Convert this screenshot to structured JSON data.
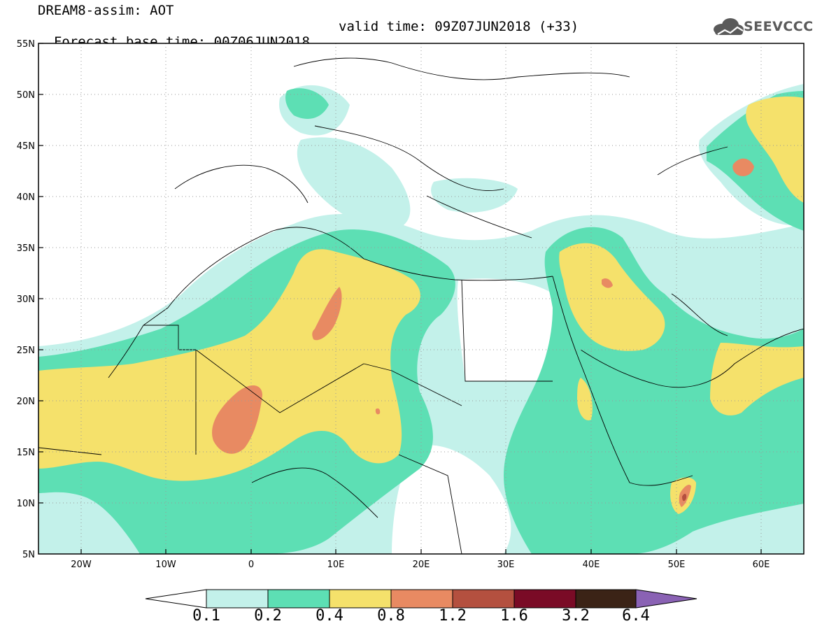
{
  "header": {
    "title_line1": "DREAM8-assim: AOT",
    "title_line2_left": "Forecast base time: 00Z06JUN2018",
    "title_line2_right": "valid time: 09Z07JUN2018 (+33)",
    "logo_text": "SEEVCCC"
  },
  "map": {
    "lat_labels": [
      "55N",
      "50N",
      "45N",
      "40N",
      "35N",
      "30N",
      "25N",
      "20N",
      "15N",
      "10N",
      "5N"
    ],
    "lon_labels": [
      "20W",
      "10W",
      "0",
      "10E",
      "20E",
      "30E",
      "40E",
      "50E",
      "60E"
    ]
  },
  "colorbar": {
    "labels": [
      "0.1",
      "0.2",
      "0.4",
      "0.8",
      "1.2",
      "1.6",
      "3.2",
      "6.4"
    ],
    "colors": {
      "under": "#ffffff",
      "c1": "#c3f1ea",
      "c2": "#5ddfb4",
      "c3": "#f5e16b",
      "c4": "#e88a62",
      "c5": "#b4503f",
      "c6": "#7a0b26",
      "c7": "#3b2316",
      "over": "#8a62b4"
    }
  }
}
